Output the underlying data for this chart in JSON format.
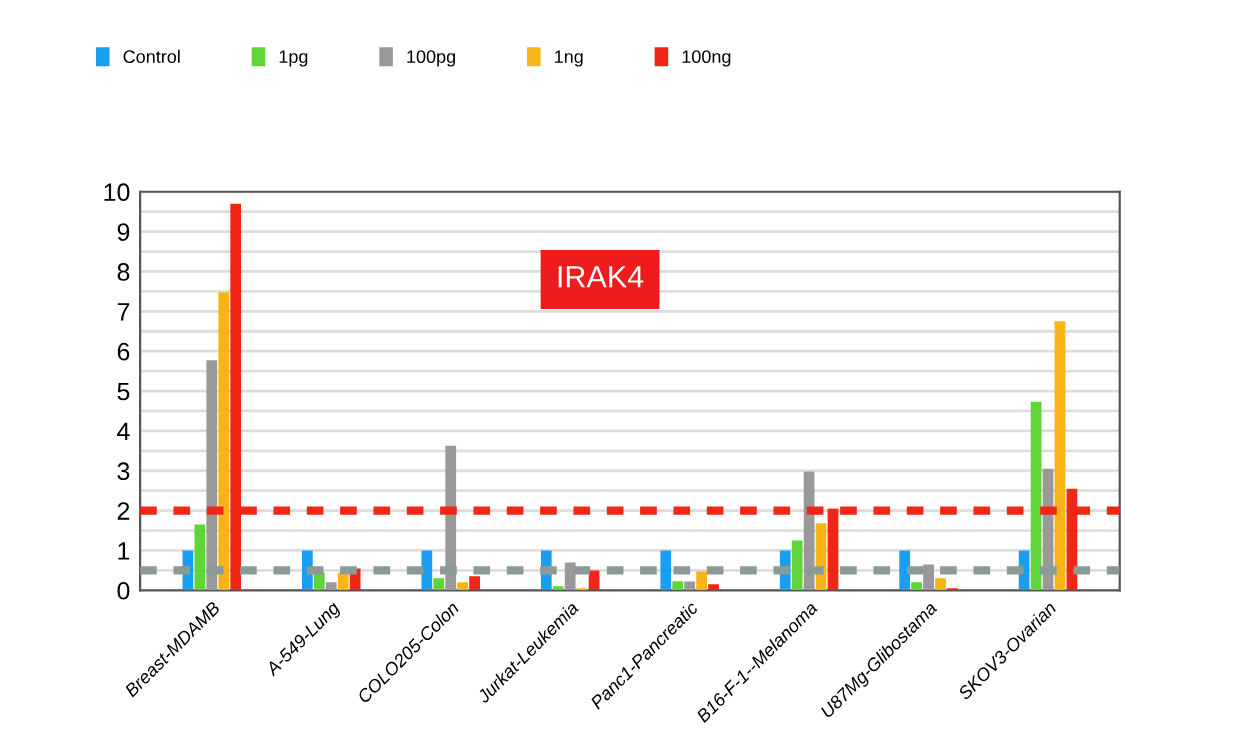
{
  "chart_data": {
    "type": "bar",
    "categories": [
      "Breast-MDAMB",
      "A-549-Lung",
      "COLO205-Colon",
      "Jurkat-Leukemia",
      "Panc1-Pancreatic",
      "B16-F-1--Melanoma",
      "U87Mg-Glibostama",
      "SKOV3-Ovarian"
    ],
    "series": [
      {
        "name": "Control",
        "color": "#1a9ff0",
        "values": [
          1,
          1,
          1,
          1,
          1,
          1,
          1,
          1
        ]
      },
      {
        "name": "1pg",
        "color": "#5fd53a",
        "values": [
          1.65,
          0.45,
          0.3,
          0.1,
          0.23,
          1.25,
          0.2,
          4.73
        ]
      },
      {
        "name": "100pg",
        "color": "#999999",
        "values": [
          5.77,
          0.2,
          3.63,
          0.7,
          0.22,
          2.98,
          0.65,
          3.05
        ]
      },
      {
        "name": "1ng",
        "color": "#f8b417",
        "values": [
          7.48,
          0.45,
          0.2,
          0.05,
          0.47,
          1.68,
          0.3,
          6.75
        ]
      },
      {
        "name": "100ng",
        "color": "#f02617",
        "values": [
          9.7,
          0.55,
          0.35,
          0.5,
          0.15,
          2.05,
          0.05,
          2.55
        ]
      }
    ],
    "ylim": [
      0,
      10
    ],
    "yticks": [
      0,
      {
        "value": 0.5,
        "label": null
      },
      1,
      {
        "value": 1.5,
        "label": null
      },
      2,
      {
        "value": 2.5,
        "label": null
      },
      3,
      {
        "value": 3.5,
        "label": null
      },
      4,
      {
        "value": 4.5,
        "label": null
      },
      5,
      {
        "value": 5.5,
        "label": null
      },
      6,
      {
        "value": 6.5,
        "label": null
      },
      7,
      {
        "value": 7.5,
        "label": null
      },
      8,
      {
        "value": 8.5,
        "label": null
      },
      9,
      {
        "value": 9.5,
        "label": null
      },
      10
    ],
    "grid": "y",
    "legend": "top",
    "ref_lines": [
      {
        "axis": "y",
        "value": 2,
        "color": "#f02617",
        "line_style": "dashed"
      },
      {
        "axis": "y",
        "value": 0.5,
        "color": "#8a9a96",
        "line_style": "dashed"
      }
    ],
    "annotations": [
      "IRAK4"
    ]
  }
}
